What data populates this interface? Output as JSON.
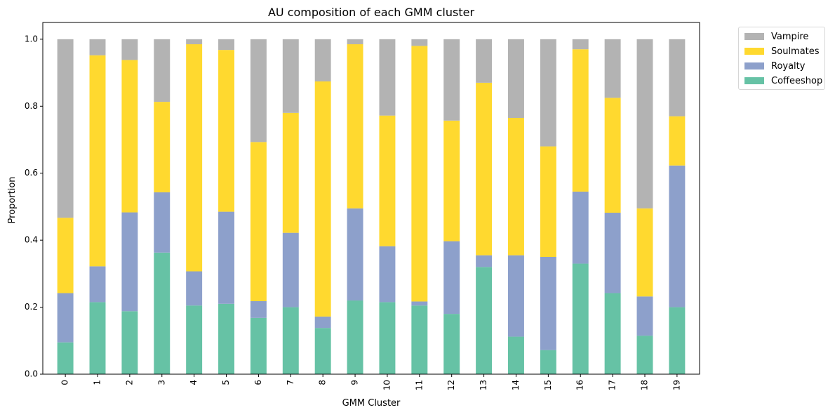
{
  "chart_data": {
    "type": "bar",
    "stacked": true,
    "title": "AU composition of each GMM cluster",
    "xlabel": "GMM Cluster",
    "ylabel": "Proportion",
    "ylim": [
      0,
      1.05
    ],
    "yticks": [
      "0.0",
      "0.2",
      "0.4",
      "0.6",
      "0.8",
      "1.0"
    ],
    "categories": [
      "0",
      "1",
      "2",
      "3",
      "4",
      "5",
      "6",
      "7",
      "8",
      "9",
      "10",
      "11",
      "12",
      "13",
      "14",
      "15",
      "16",
      "17",
      "18",
      "19"
    ],
    "legend_position": "outside-top-right",
    "series": [
      {
        "name": "Coffeeshop",
        "color": "#66c2a5",
        "values": [
          0.095,
          0.215,
          0.188,
          0.363,
          0.205,
          0.21,
          0.168,
          0.2,
          0.138,
          0.22,
          0.215,
          0.205,
          0.18,
          0.32,
          0.112,
          0.072,
          0.33,
          0.242,
          0.115,
          0.2
        ]
      },
      {
        "name": "Royalty",
        "color": "#8da0cb",
        "values": [
          0.147,
          0.107,
          0.295,
          0.18,
          0.102,
          0.275,
          0.05,
          0.222,
          0.034,
          0.275,
          0.167,
          0.012,
          0.217,
          0.035,
          0.243,
          0.278,
          0.215,
          0.24,
          0.117,
          0.423
        ]
      },
      {
        "name": "Soulmates",
        "color": "#ffd92f",
        "values": [
          0.225,
          0.63,
          0.455,
          0.27,
          0.678,
          0.483,
          0.475,
          0.358,
          0.702,
          0.49,
          0.39,
          0.763,
          0.36,
          0.515,
          0.41,
          0.33,
          0.425,
          0.343,
          0.263,
          0.147
        ]
      },
      {
        "name": "Vampire",
        "color": "#b3b3b3",
        "values": [
          0.533,
          0.048,
          0.062,
          0.187,
          0.015,
          0.032,
          0.307,
          0.22,
          0.126,
          0.015,
          0.228,
          0.02,
          0.243,
          0.13,
          0.235,
          0.32,
          0.03,
          0.175,
          0.505,
          0.23
        ]
      }
    ],
    "legend_order": [
      "Vampire",
      "Soulmates",
      "Royalty",
      "Coffeeshop"
    ]
  }
}
